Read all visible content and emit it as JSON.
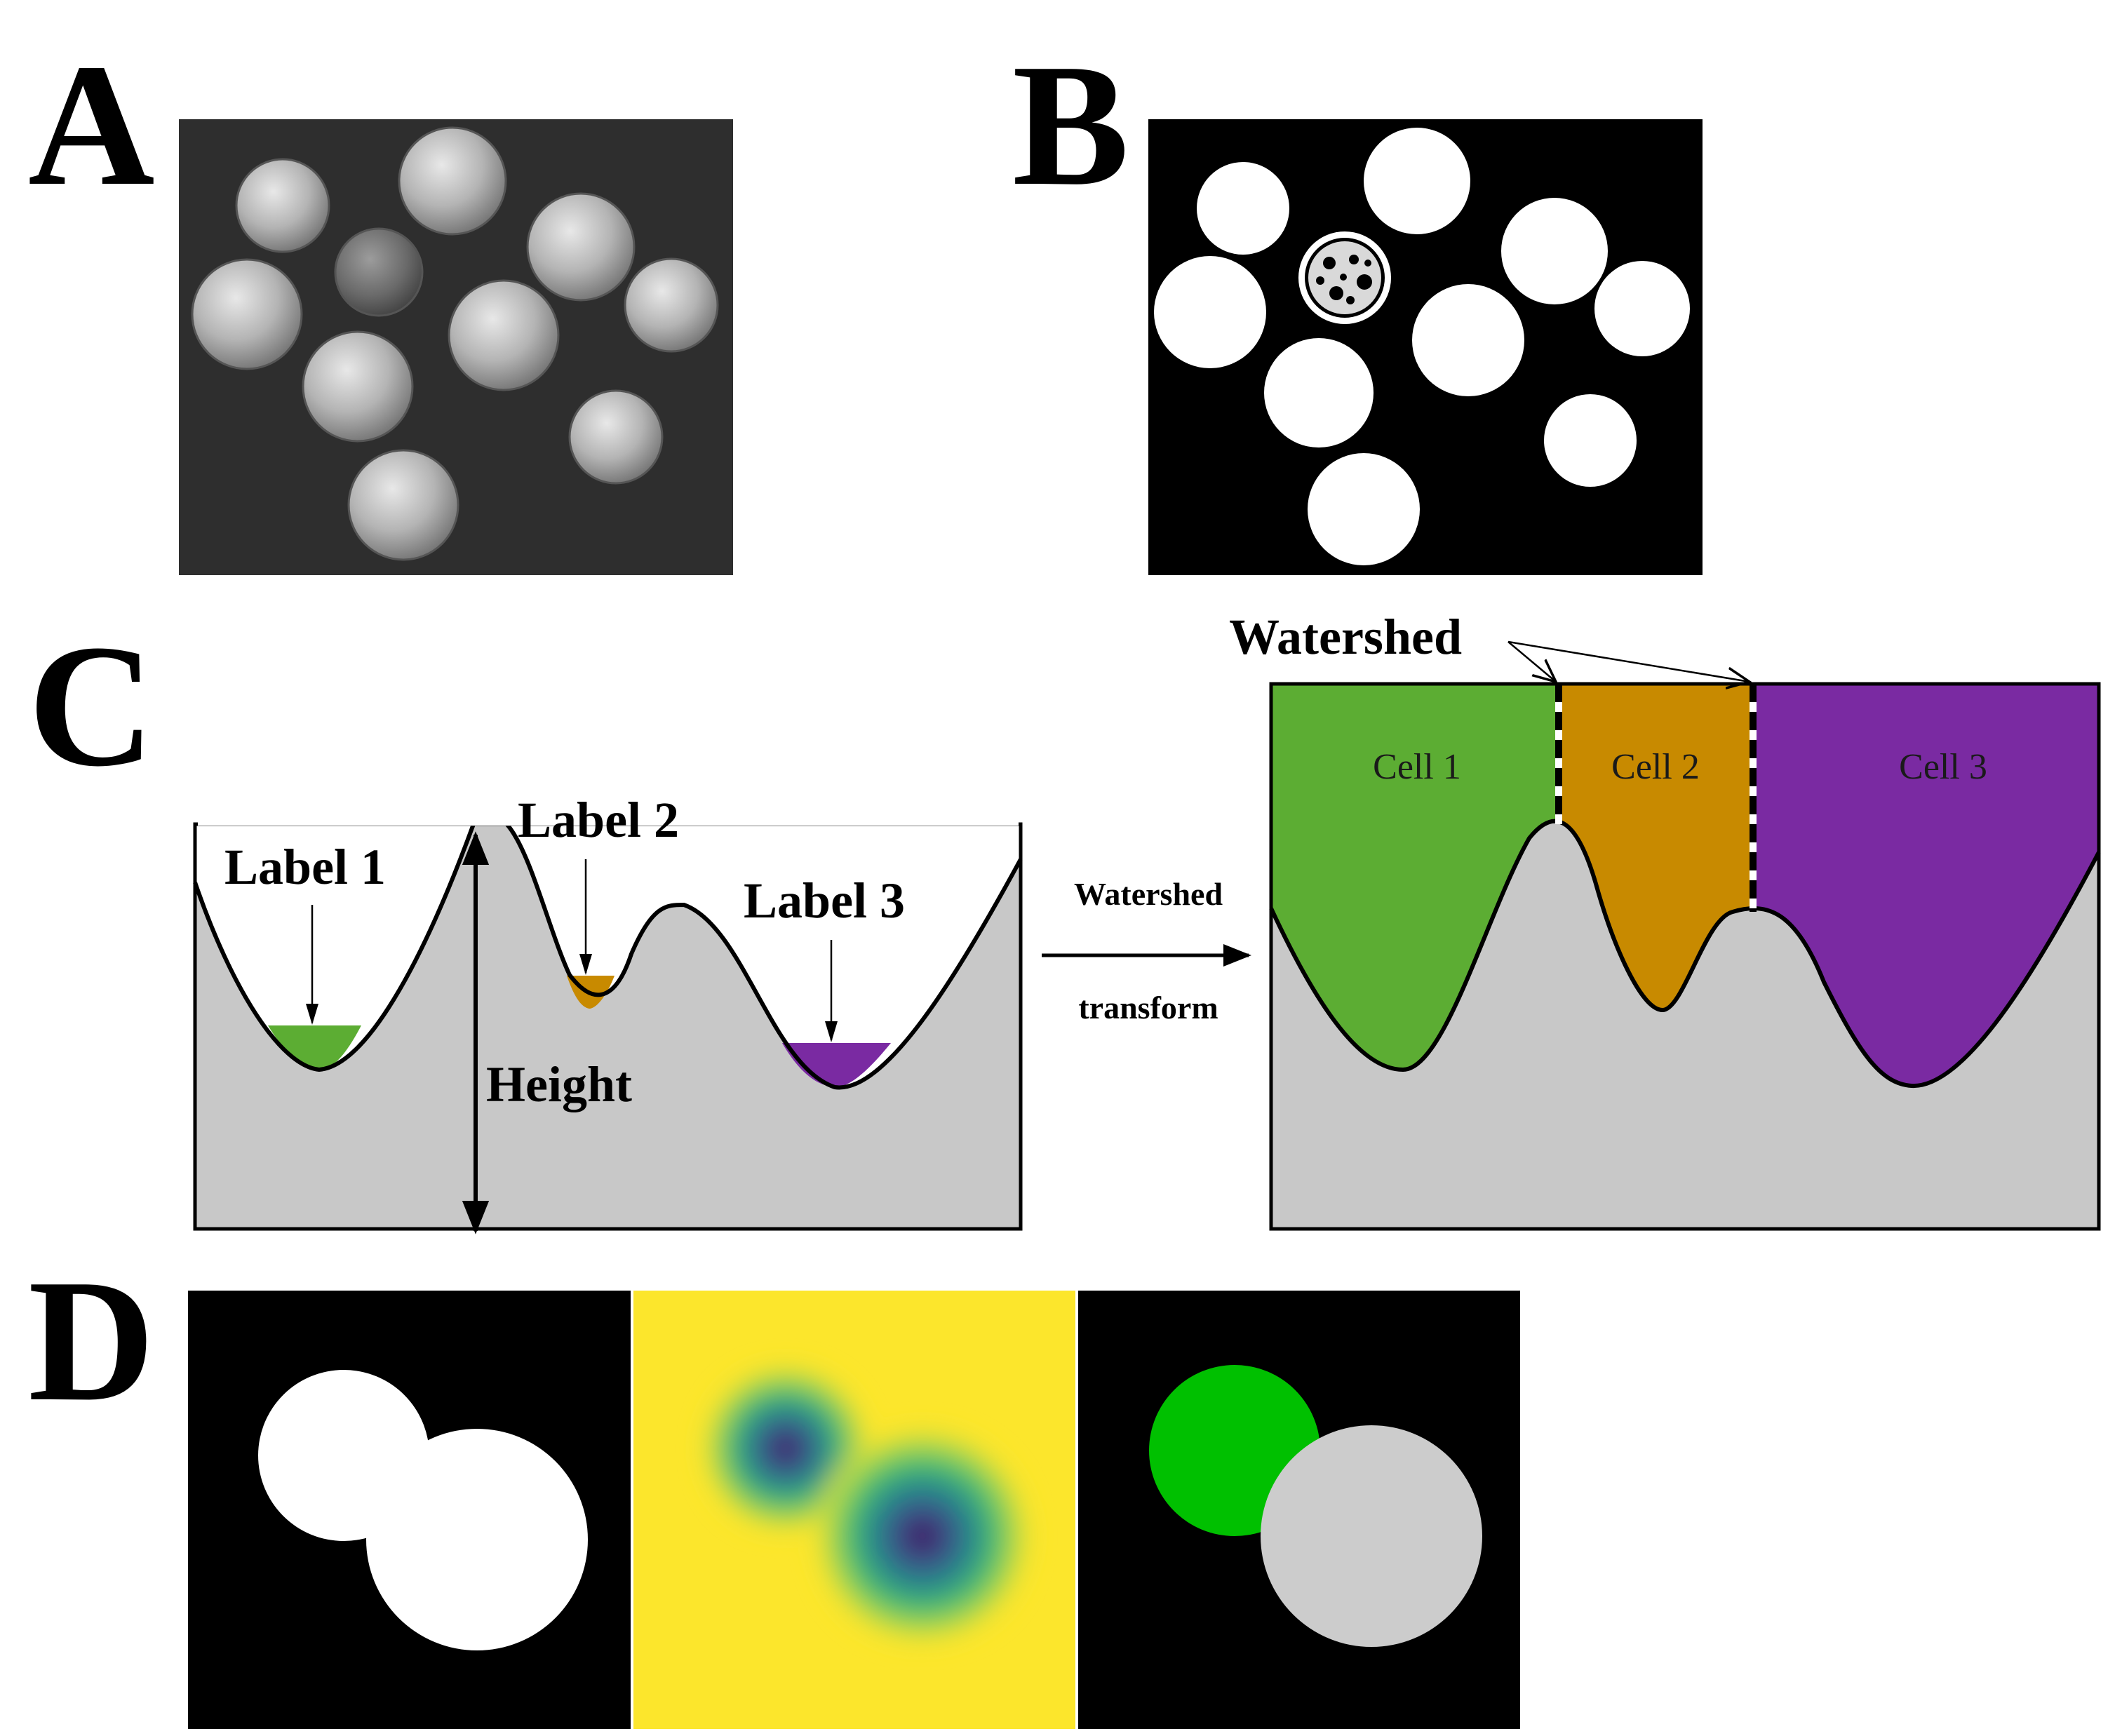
{
  "panels": {
    "a": {
      "letter": "A"
    },
    "b": {
      "letter": "B"
    },
    "c": {
      "letter": "C",
      "labels": [
        "Label 1",
        "Label 2",
        "Label 3"
      ],
      "height_label": "Height",
      "arrow_text_line1": "Watershed",
      "arrow_text_line2": "transform",
      "watershed_label": "Watershed",
      "cells": [
        "Cell 1",
        "Cell 2",
        "Cell 3"
      ]
    },
    "d": {
      "letter": "D"
    }
  },
  "colors": {
    "terrain": "#c8c8c8",
    "label1": "#5cad33",
    "label2": "#c88a00",
    "label3": "#7a2aa2",
    "coin_background": "#2e2e2e",
    "binary_foreground": "#ffffff",
    "binary_background": "#000000",
    "distance_background": "#fce62c",
    "segment_green": "#00c000",
    "segment_gray": "#cccccc"
  }
}
